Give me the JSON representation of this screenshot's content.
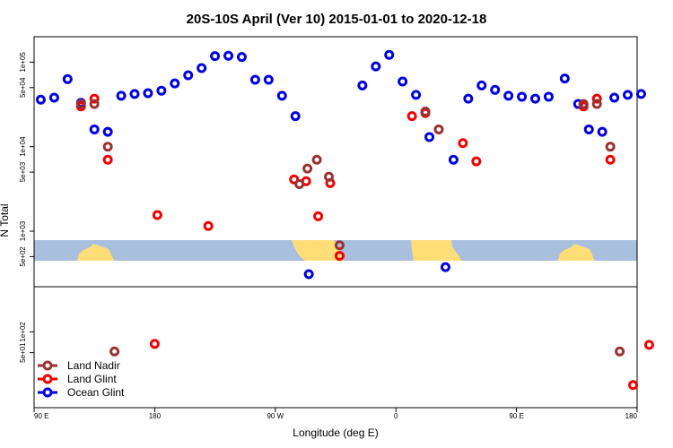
{
  "chart_data": {
    "type": "scatter",
    "title": "20S-10S April (Ver 10)   2015-01-01 to 2020-12-18",
    "xlabel": "Longitude (deg E)",
    "ylabel": "N Total",
    "x_axis": {
      "range_label": "90 E to 180 (wrapping)",
      "ticks": [
        {
          "value": 90,
          "label": "90 E"
        },
        {
          "value": 180,
          "label": "180"
        },
        {
          "value": 270,
          "label": "90 W"
        },
        {
          "value": 360,
          "label": "0"
        },
        {
          "value": 450,
          "label": "90 E"
        },
        {
          "value": 540,
          "label": "180"
        }
      ],
      "xlim": [
        90,
        540
      ]
    },
    "y_axis": {
      "scale": "log",
      "upper_panel_ticks": [
        {
          "value": 500,
          "label": "5e+02"
        },
        {
          "value": 1000,
          "label": "1e+03"
        },
        {
          "value": 5000,
          "label": "5e+03"
        },
        {
          "value": 10000,
          "label": "1e+04"
        },
        {
          "value": 50000,
          "label": "5e+04"
        },
        {
          "value": 100000,
          "label": "1e+05"
        }
      ],
      "lower_panel_ticks": [
        {
          "value": 50,
          "label": "5e+01"
        },
        {
          "value": 100,
          "label": "1e+02"
        }
      ],
      "upper_ylim": [
        220,
        200000
      ],
      "lower_ylim": [
        8,
        450
      ]
    },
    "legend": {
      "position": "bottom-left",
      "entries": [
        {
          "label": "Land Nadir",
          "color": "#993333"
        },
        {
          "label": "Land Glint",
          "color": "#ee0000"
        },
        {
          "label": "Ocean Glint",
          "color": "#0000dd"
        }
      ]
    },
    "grid": false,
    "map_strip": {
      "ocean_color": "#a8bfde",
      "land_color": "#ffdd77"
    },
    "series": [
      {
        "name": "Ocean Glint",
        "color": "#0000dd",
        "points": [
          [
            95,
            36000
          ],
          [
            105,
            38000
          ],
          [
            115,
            63000
          ],
          [
            125,
            33000
          ],
          [
            135,
            16000
          ],
          [
            145,
            15000
          ],
          [
            155,
            40000
          ],
          [
            165,
            42000
          ],
          [
            175,
            43000
          ],
          [
            185,
            46000
          ],
          [
            195,
            56000
          ],
          [
            205,
            70000
          ],
          [
            215,
            85000
          ],
          [
            225,
            118000
          ],
          [
            235,
            119000
          ],
          [
            245,
            115000
          ],
          [
            255,
            62000
          ],
          [
            265,
            62000
          ],
          [
            275,
            40000
          ],
          [
            285,
            23000
          ],
          [
            295,
            310
          ],
          [
            335,
            53000
          ],
          [
            345,
            89000
          ],
          [
            355,
            122000
          ],
          [
            365,
            59000
          ],
          [
            375,
            41000
          ],
          [
            385,
            13000
          ],
          [
            397,
            375
          ],
          [
            403,
            7000
          ],
          [
            414,
            37000
          ],
          [
            424,
            53000
          ],
          [
            434,
            47000
          ],
          [
            444,
            40000
          ],
          [
            454,
            39000
          ],
          [
            464,
            37000
          ],
          [
            474,
            39000
          ],
          [
            486,
            64000
          ],
          [
            496,
            32000
          ],
          [
            504,
            16000
          ],
          [
            514,
            15000
          ],
          [
            523,
            38000
          ],
          [
            533,
            41000
          ],
          [
            543,
            42000
          ]
        ]
      },
      {
        "name": "Land Glint",
        "color": "#ee0000",
        "points": [
          [
            125,
            30000
          ],
          [
            135,
            37000
          ],
          [
            145,
            7000
          ],
          [
            180,
            67
          ],
          [
            182,
            1550
          ],
          [
            220,
            1150
          ],
          [
            284,
            4100
          ],
          [
            293,
            3900
          ],
          [
            302,
            1500
          ],
          [
            311,
            3700
          ],
          [
            318,
            510
          ],
          [
            372,
            23000
          ],
          [
            382,
            25000
          ],
          [
            410,
            11000
          ],
          [
            420,
            6700
          ],
          [
            500,
            30000
          ],
          [
            510,
            37000
          ],
          [
            520,
            7000
          ],
          [
            537,
            17
          ],
          [
            549,
            65
          ]
        ]
      },
      {
        "name": "Land Nadir",
        "color": "#993333",
        "points": [
          [
            125,
            32000
          ],
          [
            135,
            32000
          ],
          [
            145,
            10000
          ],
          [
            150,
            52
          ],
          [
            288,
            3600
          ],
          [
            294,
            5500
          ],
          [
            301,
            7000
          ],
          [
            310,
            4400
          ],
          [
            318,
            680
          ],
          [
            382,
            26000
          ],
          [
            392,
            16000
          ],
          [
            500,
            32000
          ],
          [
            510,
            32000
          ],
          [
            520,
            10000
          ],
          [
            527,
            52
          ]
        ]
      }
    ]
  }
}
